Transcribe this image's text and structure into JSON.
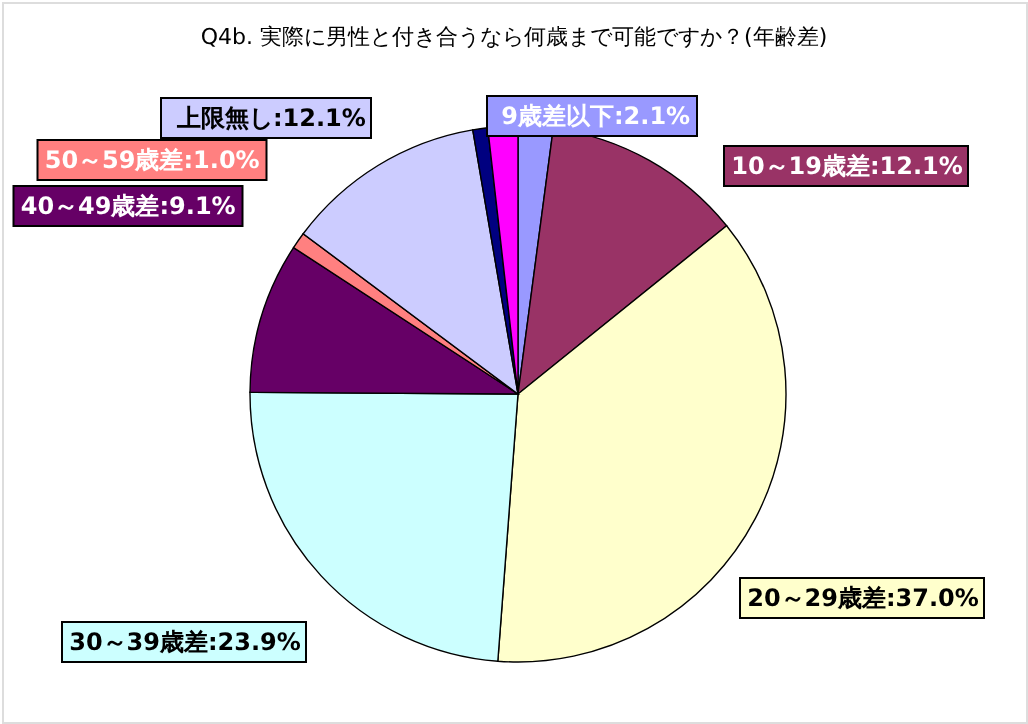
{
  "chart_data": {
    "type": "pie",
    "title": "Q4b. 実際に男性と付き合うなら何歳まで可能ですか？(年齢差)",
    "categories": [
      "9歳差以下",
      "10～19歳差",
      "20～29歳差",
      "30～39歳差",
      "40～49歳差",
      "50～59歳差",
      "上限無し",
      null,
      null
    ],
    "values": [
      2.1,
      12.1,
      37.0,
      23.9,
      9.1,
      1.0,
      12.1,
      0.9,
      1.8
    ],
    "colors": [
      "#9999ff",
      "#993366",
      "#ffffcc",
      "#ccffff",
      "#660066",
      "#ff8080",
      "#ccccff",
      "#000080",
      "#ff00ff"
    ],
    "value_labels": [
      ":2.1%",
      ":12.1%",
      ":37.0%",
      ":23.9%",
      ":9.1%",
      ":1.0%",
      ":12.1%",
      null,
      null
    ]
  }
}
